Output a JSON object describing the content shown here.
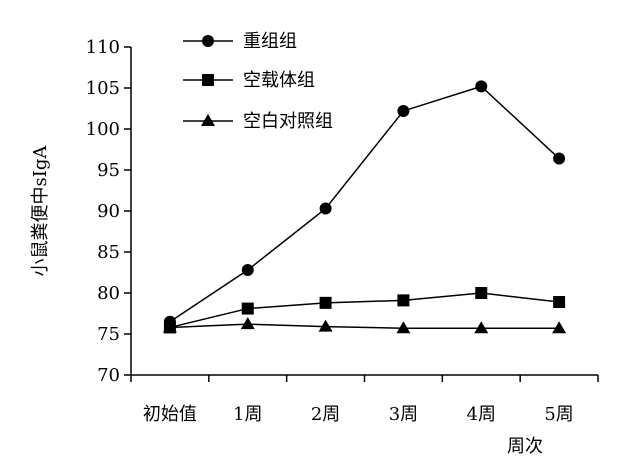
{
  "chart_data": {
    "type": "line",
    "categories": [
      "初始值",
      "1周",
      "2周",
      "3周",
      "4周",
      "5周"
    ],
    "xlabel": "周次",
    "ylabel": "小鼠粪便中sIgA",
    "ylim": [
      70,
      110
    ],
    "yticks": [
      70,
      75,
      80,
      85,
      90,
      95,
      100,
      105,
      110
    ],
    "grid": false,
    "legend_position": "top-left",
    "series": [
      {
        "name": "重组组",
        "marker": "circle",
        "values": [
          76.5,
          82.8,
          90.3,
          102.2,
          105.2,
          96.4
        ]
      },
      {
        "name": "空载体组",
        "marker": "square",
        "values": [
          75.8,
          78.1,
          78.8,
          79.1,
          80.0,
          78.9
        ]
      },
      {
        "name": "空白对照组",
        "marker": "triangle",
        "values": [
          75.8,
          76.2,
          75.9,
          75.7,
          75.7,
          75.7
        ]
      }
    ]
  }
}
